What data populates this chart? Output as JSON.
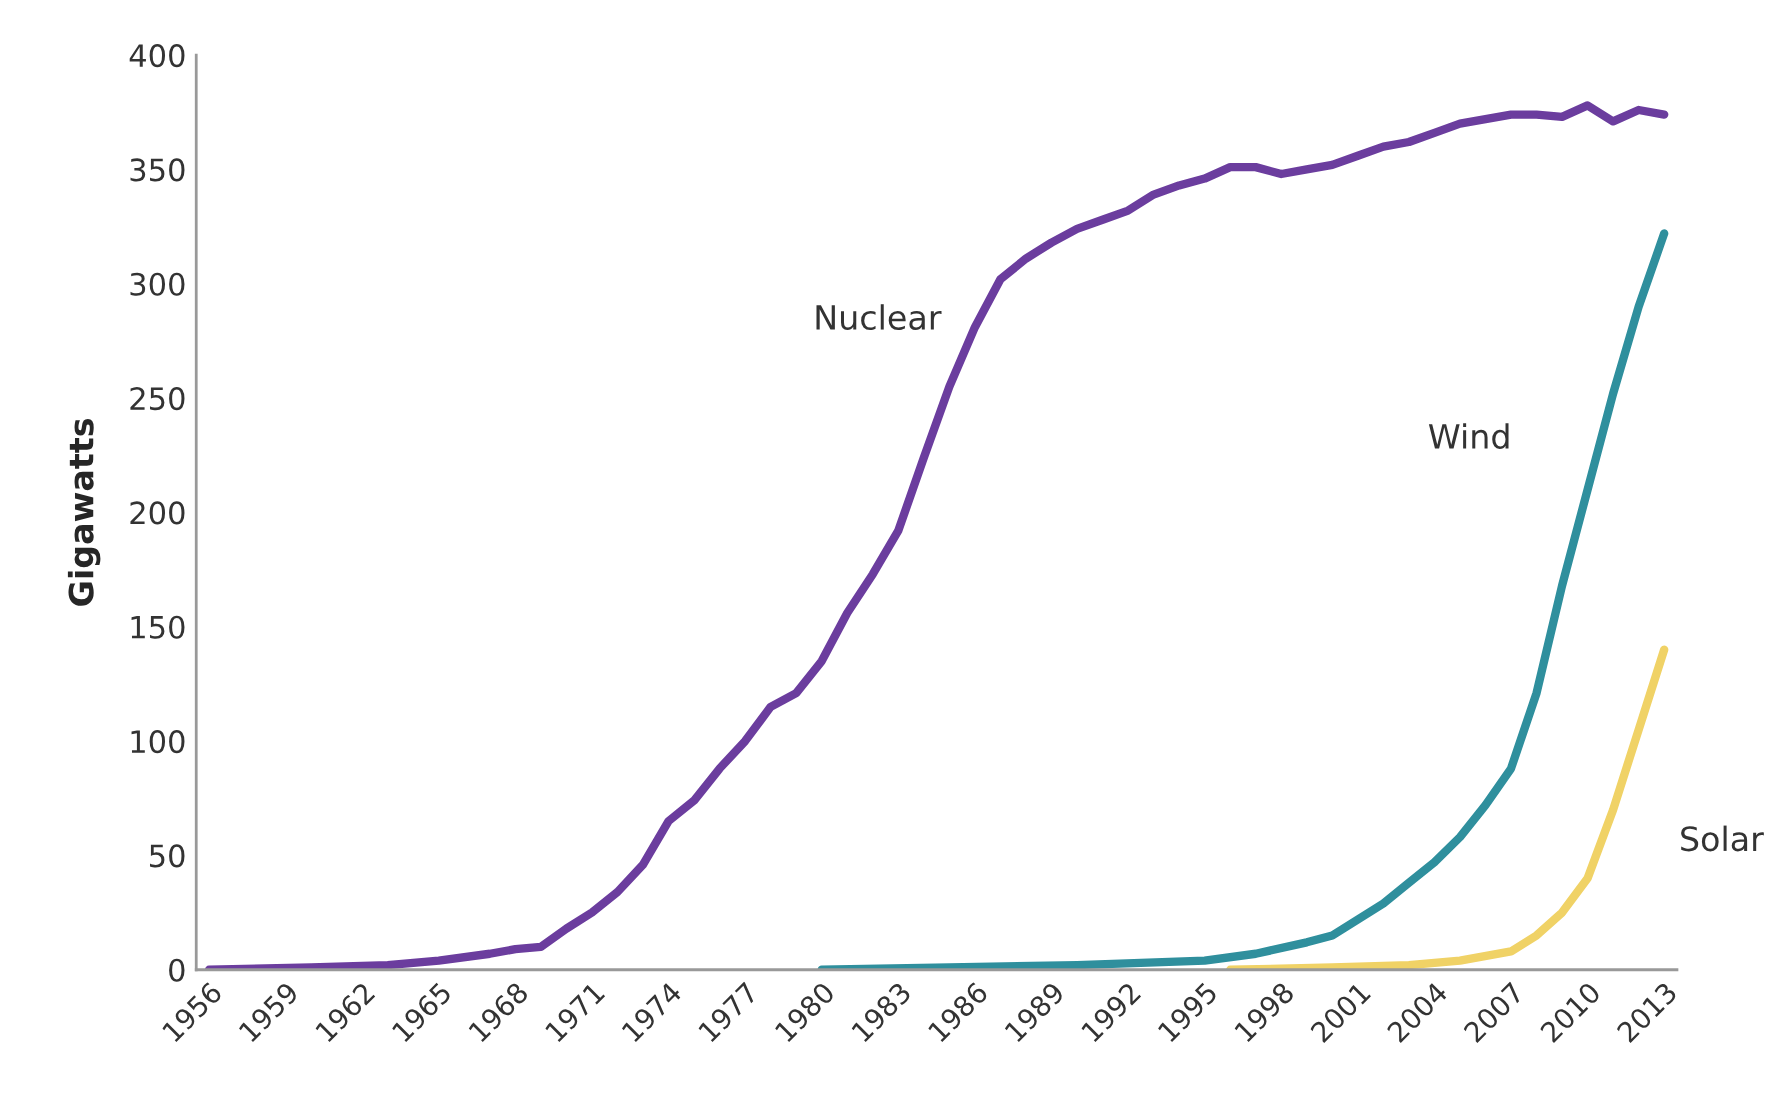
{
  "chart_data": {
    "type": "line",
    "ylabel": "Gigawatts",
    "xlim": [
      1955.5,
      2013.5
    ],
    "xticks": [
      1956,
      1959,
      1962,
      1965,
      1968,
      1971,
      1974,
      1977,
      1980,
      1983,
      1986,
      1989,
      1992,
      1995,
      1998,
      2001,
      2004,
      2007,
      2010,
      2013
    ],
    "ylim": [
      0,
      400
    ],
    "yticks": [
      0,
      50,
      100,
      150,
      200,
      250,
      300,
      350,
      400
    ],
    "grid": false,
    "marker": "none",
    "line_style": "solid",
    "series": [
      {
        "name": "Nuclear",
        "color": "#6b3d9e",
        "x": [
          1956,
          1960,
          1963,
          1965,
          1967,
          1968,
          1969,
          1970,
          1971,
          1972,
          1973,
          1974,
          1975,
          1976,
          1977,
          1978,
          1979,
          1980,
          1981,
          1982,
          1983,
          1984,
          1985,
          1986,
          1987,
          1988,
          1989,
          1990,
          1991,
          1992,
          1993,
          1994,
          1995,
          1996,
          1997,
          1998,
          1999,
          2000,
          2001,
          2002,
          2003,
          2004,
          2005,
          2006,
          2007,
          2008,
          2009,
          2010,
          2011,
          2012,
          2013
        ],
        "values": [
          0,
          1,
          2,
          4,
          7,
          9,
          10,
          18,
          25,
          34,
          46,
          65,
          74,
          88,
          100,
          115,
          121,
          135,
          156,
          173,
          192,
          224,
          255,
          281,
          302,
          311,
          318,
          324,
          328,
          332,
          339,
          343,
          346,
          351,
          351,
          348,
          350,
          352,
          356,
          360,
          362,
          366,
          370,
          372,
          374,
          374,
          373,
          378,
          371,
          376,
          374
        ]
      },
      {
        "name": "Wind",
        "color": "#2f8f9d",
        "x": [
          1980,
          1985,
          1990,
          1995,
          1997,
          1999,
          2000,
          2001,
          2002,
          2003,
          2004,
          2005,
          2006,
          2007,
          2008,
          2009,
          2010,
          2011,
          2012,
          2013
        ],
        "values": [
          0,
          1,
          2,
          4,
          7,
          12,
          15,
          22,
          29,
          38,
          47,
          58,
          72,
          88,
          121,
          168,
          210,
          252,
          290,
          322
        ]
      },
      {
        "name": "Solar",
        "color": "#f0d266",
        "x": [
          1996,
          2000,
          2003,
          2005,
          2007,
          2008,
          2009,
          2010,
          2011,
          2012,
          2013
        ],
        "values": [
          0,
          1,
          2,
          4,
          8,
          15,
          25,
          40,
          70,
          105,
          140
        ]
      }
    ]
  }
}
